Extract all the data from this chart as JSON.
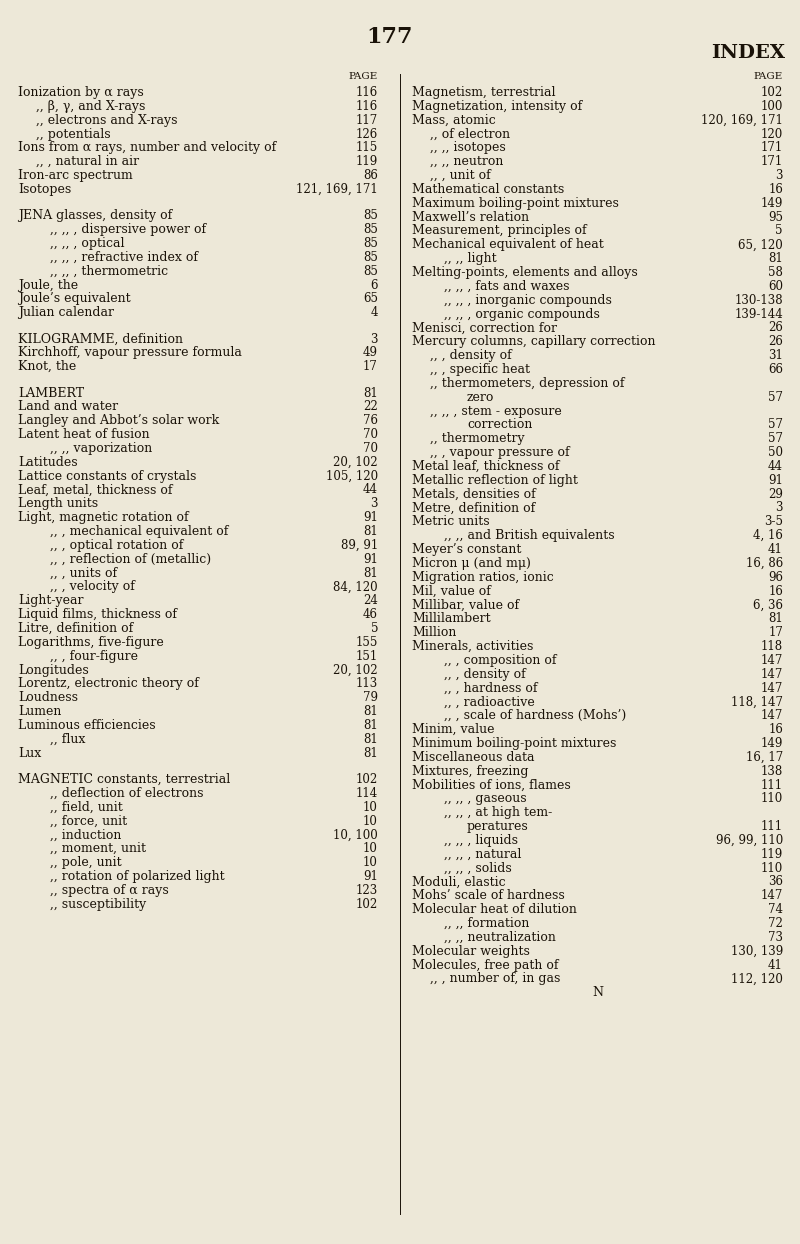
{
  "page_number": "177",
  "header_right": "INDEX",
  "background_color": "#ede8d8",
  "text_color": "#1a1208",
  "left_column": [
    {
      "text": "Ionization by α rays",
      "page": "116",
      "indent": 0,
      "style": "normal"
    },
    {
      "text": ",, β, γ, and X-rays",
      "page": "116",
      "indent": 1,
      "style": "normal"
    },
    {
      "text": ",, electrons and X-rays",
      "page": "117",
      "indent": 1,
      "style": "normal"
    },
    {
      "text": ",, potentials",
      "page": "126",
      "indent": 1,
      "style": "normal"
    },
    {
      "text": "Ions from α rays, number and velocity of",
      "page": "115",
      "indent": 0,
      "style": "normal"
    },
    {
      "text": ",, , natural in air",
      "page": "119",
      "indent": 1,
      "style": "normal"
    },
    {
      "text": "Iron-arc spectrum",
      "page": "86",
      "indent": 0,
      "style": "normal"
    },
    {
      "text": "Isotopes",
      "page": "121, 169, 171",
      "indent": 0,
      "style": "normal"
    },
    {
      "text": "",
      "page": "",
      "indent": 0,
      "style": "blank"
    },
    {
      "text": "JENA glasses, density of",
      "page": "85",
      "indent": 0,
      "style": "smallcaps"
    },
    {
      "text": ",, ,, , dispersive power of",
      "page": "85",
      "indent": 2,
      "style": "normal"
    },
    {
      "text": ",, ,, , optical",
      "page": "85",
      "indent": 2,
      "style": "normal"
    },
    {
      "text": ",, ,, , refractive index of",
      "page": "85",
      "indent": 2,
      "style": "normal"
    },
    {
      "text": ",, ,, , thermometric",
      "page": "85",
      "indent": 2,
      "style": "normal"
    },
    {
      "text": "Joule, the",
      "page": "6",
      "indent": 0,
      "style": "normal"
    },
    {
      "text": "Joule’s equivalent",
      "page": "65",
      "indent": 0,
      "style": "normal"
    },
    {
      "text": "Julian calendar",
      "page": "4",
      "indent": 0,
      "style": "normal"
    },
    {
      "text": "",
      "page": "",
      "indent": 0,
      "style": "blank"
    },
    {
      "text": "KILOGRAMME, definition",
      "page": "3",
      "indent": 0,
      "style": "smallcaps"
    },
    {
      "text": "Kirchhoff, vapour pressure formula",
      "page": "49",
      "indent": 0,
      "style": "normal"
    },
    {
      "text": "Knot, the",
      "page": "17",
      "indent": 0,
      "style": "normal"
    },
    {
      "text": "",
      "page": "",
      "indent": 0,
      "style": "blank"
    },
    {
      "text": "LAMBERT",
      "page": "81",
      "indent": 0,
      "style": "smallcaps"
    },
    {
      "text": "Land and water",
      "page": "22",
      "indent": 0,
      "style": "normal"
    },
    {
      "text": "Langley and Abbot’s solar work",
      "page": "76",
      "indent": 0,
      "style": "normal"
    },
    {
      "text": "Latent heat of fusion",
      "page": "70",
      "indent": 0,
      "style": "normal"
    },
    {
      "text": ",, ,, vaporization",
      "page": "70",
      "indent": 2,
      "style": "normal"
    },
    {
      "text": "Latitudes",
      "page": "20, 102",
      "indent": 0,
      "style": "normal"
    },
    {
      "text": "Lattice constants of crystals",
      "page": "105, 120",
      "indent": 0,
      "style": "normal"
    },
    {
      "text": "Leaf, metal, thickness of",
      "page": "44",
      "indent": 0,
      "style": "normal"
    },
    {
      "text": "Length units",
      "page": "3",
      "indent": 0,
      "style": "normal"
    },
    {
      "text": "Light, magnetic rotation of",
      "page": "91",
      "indent": 0,
      "style": "normal"
    },
    {
      "text": ",, , mechanical equivalent of",
      "page": "81",
      "indent": 2,
      "style": "normal"
    },
    {
      "text": ",, , optical rotation of",
      "page": "89, 91",
      "indent": 2,
      "style": "normal"
    },
    {
      "text": ",, , reflection of (metallic)",
      "page": "91",
      "indent": 2,
      "style": "normal"
    },
    {
      "text": ",, , units of",
      "page": "81",
      "indent": 2,
      "style": "normal"
    },
    {
      "text": ",, , velocity of",
      "page": "84, 120",
      "indent": 2,
      "style": "normal"
    },
    {
      "text": "Light-year",
      "page": "24",
      "indent": 0,
      "style": "normal"
    },
    {
      "text": "Liquid films, thickness of",
      "page": "46",
      "indent": 0,
      "style": "normal"
    },
    {
      "text": "Litre, definition of",
      "page": "5",
      "indent": 0,
      "style": "normal"
    },
    {
      "text": "Logarithms, five-figure",
      "page": "155",
      "indent": 0,
      "style": "normal"
    },
    {
      "text": ",, , four-figure",
      "page": "151",
      "indent": 2,
      "style": "normal"
    },
    {
      "text": "Longitudes",
      "page": "20, 102",
      "indent": 0,
      "style": "normal"
    },
    {
      "text": "Lorentz, electronic theory of",
      "page": "113",
      "indent": 0,
      "style": "normal"
    },
    {
      "text": "Loudness",
      "page": "79",
      "indent": 0,
      "style": "normal"
    },
    {
      "text": "Lumen",
      "page": "81",
      "indent": 0,
      "style": "normal"
    },
    {
      "text": "Luminous efficiencies",
      "page": "81",
      "indent": 0,
      "style": "normal"
    },
    {
      "text": ",, flux",
      "page": "81",
      "indent": 2,
      "style": "normal"
    },
    {
      "text": "Lux",
      "page": "81",
      "indent": 0,
      "style": "normal"
    },
    {
      "text": "",
      "page": "",
      "indent": 0,
      "style": "blank"
    },
    {
      "text": "MAGNETIC constants, terrestrial",
      "page": "102",
      "indent": 0,
      "style": "smallcaps"
    },
    {
      "text": ",, deflection of electrons",
      "page": "114",
      "indent": 2,
      "style": "normal"
    },
    {
      "text": ",, field, unit",
      "page": "10",
      "indent": 2,
      "style": "normal"
    },
    {
      "text": ",, force, unit",
      "page": "10",
      "indent": 2,
      "style": "normal"
    },
    {
      "text": ",, induction",
      "page": "10, 100",
      "indent": 2,
      "style": "normal"
    },
    {
      "text": ",, moment, unit",
      "page": "10",
      "indent": 2,
      "style": "normal"
    },
    {
      "text": ",, pole, unit",
      "page": "10",
      "indent": 2,
      "style": "normal"
    },
    {
      "text": ",, rotation of polarized light",
      "page": "91",
      "indent": 2,
      "style": "normal"
    },
    {
      "text": ",, spectra of α rays",
      "page": "123",
      "indent": 2,
      "style": "normal"
    },
    {
      "text": ",, susceptibility",
      "page": "102",
      "indent": 2,
      "style": "normal"
    }
  ],
  "right_column": [
    {
      "text": "Magnetism, terrestrial",
      "page": "102",
      "indent": 0,
      "style": "normal"
    },
    {
      "text": "Magnetization, intensity of",
      "page": "100",
      "indent": 0,
      "style": "normal"
    },
    {
      "text": "Mass, atomic",
      "page": "120, 169, 171",
      "indent": 0,
      "style": "normal"
    },
    {
      "text": ",, of electron",
      "page": "120",
      "indent": 1,
      "style": "normal"
    },
    {
      "text": ",, ,, isotopes",
      "page": "171",
      "indent": 1,
      "style": "normal"
    },
    {
      "text": ",, ,, neutron",
      "page": "171",
      "indent": 1,
      "style": "normal"
    },
    {
      "text": ",, , unit of",
      "page": "3",
      "indent": 1,
      "style": "normal"
    },
    {
      "text": "Mathematical constants",
      "page": "16",
      "indent": 0,
      "style": "normal"
    },
    {
      "text": "Maximum boiling-point mixtures",
      "page": "149",
      "indent": 0,
      "style": "normal"
    },
    {
      "text": "Maxwell’s relation",
      "page": "95",
      "indent": 0,
      "style": "normal"
    },
    {
      "text": "Measurement, principles of",
      "page": "5",
      "indent": 0,
      "style": "normal"
    },
    {
      "text": "Mechanical equivalent of heat",
      "page": "65, 120",
      "indent": 0,
      "style": "normal"
    },
    {
      "text": ",, ,, light",
      "page": "81",
      "indent": 2,
      "style": "normal"
    },
    {
      "text": "Melting-points, elements and alloys",
      "page": "58",
      "indent": 0,
      "style": "normal"
    },
    {
      "text": ",, ,, , fats and waxes",
      "page": "60",
      "indent": 2,
      "style": "normal"
    },
    {
      "text": ",, ,, , inorganic compounds",
      "page": "130-138",
      "indent": 2,
      "style": "normal"
    },
    {
      "text": ",, ,, , organic compounds",
      "page": "139-144",
      "indent": 2,
      "style": "normal"
    },
    {
      "text": "Menisci, correction for",
      "page": "26",
      "indent": 0,
      "style": "normal"
    },
    {
      "text": "Mercury columns, capillary correction",
      "page": "26",
      "indent": 0,
      "style": "normal"
    },
    {
      "text": ",, , density of",
      "page": "31",
      "indent": 1,
      "style": "normal"
    },
    {
      "text": ",, , specific heat",
      "page": "66",
      "indent": 1,
      "style": "normal"
    },
    {
      "text": ",, thermometers, depression of",
      "page": "",
      "indent": 1,
      "style": "normal"
    },
    {
      "text": "zero",
      "page": "57",
      "indent": 3,
      "style": "normal"
    },
    {
      "text": ",, ,, , stem - exposure",
      "page": "",
      "indent": 1,
      "style": "normal"
    },
    {
      "text": "correction",
      "page": "57",
      "indent": 3,
      "style": "normal"
    },
    {
      "text": ",, thermometry",
      "page": "57",
      "indent": 1,
      "style": "normal"
    },
    {
      "text": ",, , vapour pressure of",
      "page": "50",
      "indent": 1,
      "style": "normal"
    },
    {
      "text": "Metal leaf, thickness of",
      "page": "44",
      "indent": 0,
      "style": "normal"
    },
    {
      "text": "Metallic reflection of light",
      "page": "91",
      "indent": 0,
      "style": "normal"
    },
    {
      "text": "Metals, densities of",
      "page": "29",
      "indent": 0,
      "style": "normal"
    },
    {
      "text": "Metre, definition of",
      "page": "3",
      "indent": 0,
      "style": "normal"
    },
    {
      "text": "Metric units",
      "page": "3-5",
      "indent": 0,
      "style": "normal"
    },
    {
      "text": ",, ,, and British equivalents",
      "page": "4, 16",
      "indent": 2,
      "style": "normal"
    },
    {
      "text": "Meyer’s constant",
      "page": "41",
      "indent": 0,
      "style": "normal"
    },
    {
      "text": "Micron μ (and mμ)",
      "page": "16, 86",
      "indent": 0,
      "style": "normal"
    },
    {
      "text": "Migration ratios, ionic",
      "page": "96",
      "indent": 0,
      "style": "normal"
    },
    {
      "text": "Mil, value of",
      "page": "16",
      "indent": 0,
      "style": "normal"
    },
    {
      "text": "Millibar, value of",
      "page": "6, 36",
      "indent": 0,
      "style": "normal"
    },
    {
      "text": "Millilambert",
      "page": "81",
      "indent": 0,
      "style": "normal"
    },
    {
      "text": "Million",
      "page": "17",
      "indent": 0,
      "style": "normal"
    },
    {
      "text": "Minerals, activities",
      "page": "118",
      "indent": 0,
      "style": "normal"
    },
    {
      "text": ",, , composition of",
      "page": "147",
      "indent": 2,
      "style": "normal"
    },
    {
      "text": ",, , density of",
      "page": "147",
      "indent": 2,
      "style": "normal"
    },
    {
      "text": ",, , hardness of",
      "page": "147",
      "indent": 2,
      "style": "normal"
    },
    {
      "text": ",, , radioactive",
      "page": "118, 147",
      "indent": 2,
      "style": "normal"
    },
    {
      "text": ",, , scale of hardness (Mohs’)",
      "page": "147",
      "indent": 2,
      "style": "normal"
    },
    {
      "text": "Minim, value",
      "page": "16",
      "indent": 0,
      "style": "normal"
    },
    {
      "text": "Minimum boiling-point mixtures",
      "page": "149",
      "indent": 0,
      "style": "normal"
    },
    {
      "text": "Miscellaneous data",
      "page": "16, 17",
      "indent": 0,
      "style": "normal"
    },
    {
      "text": "Mixtures, freezing",
      "page": "138",
      "indent": 0,
      "style": "normal"
    },
    {
      "text": "Mobilities of ions, flames",
      "page": "111",
      "indent": 0,
      "style": "normal"
    },
    {
      "text": ",, ,, , gaseous",
      "page": "110",
      "indent": 2,
      "style": "normal"
    },
    {
      "text": ",, ,, , at high tem-",
      "page": "",
      "indent": 2,
      "style": "normal"
    },
    {
      "text": "peratures",
      "page": "111",
      "indent": 3,
      "style": "normal"
    },
    {
      "text": ",, ,, , liquids",
      "page": "96, 99, 110",
      "indent": 2,
      "style": "normal"
    },
    {
      "text": ",, ,, , natural",
      "page": "119",
      "indent": 2,
      "style": "normal"
    },
    {
      "text": ",, ,, , solids",
      "page": "110",
      "indent": 2,
      "style": "normal"
    },
    {
      "text": "Moduli, elastic",
      "page": "36",
      "indent": 0,
      "style": "normal"
    },
    {
      "text": "Mohs’ scale of hardness",
      "page": "147",
      "indent": 0,
      "style": "normal"
    },
    {
      "text": "Molecular heat of dilution",
      "page": "74",
      "indent": 0,
      "style": "normal"
    },
    {
      "text": ",, ,, formation",
      "page": "72",
      "indent": 2,
      "style": "normal"
    },
    {
      "text": ",, ,, neutralization",
      "page": "73",
      "indent": 2,
      "style": "normal"
    },
    {
      "text": "Molecular weights",
      "page": "130, 139",
      "indent": 0,
      "style": "normal"
    },
    {
      "text": "Molecules, free path of",
      "page": "41",
      "indent": 0,
      "style": "normal"
    },
    {
      "text": ",, , number of, in gas",
      "page": "112, 120",
      "indent": 1,
      "style": "normal"
    },
    {
      "text": "N",
      "page": "",
      "indent": 0,
      "style": "footer"
    }
  ]
}
